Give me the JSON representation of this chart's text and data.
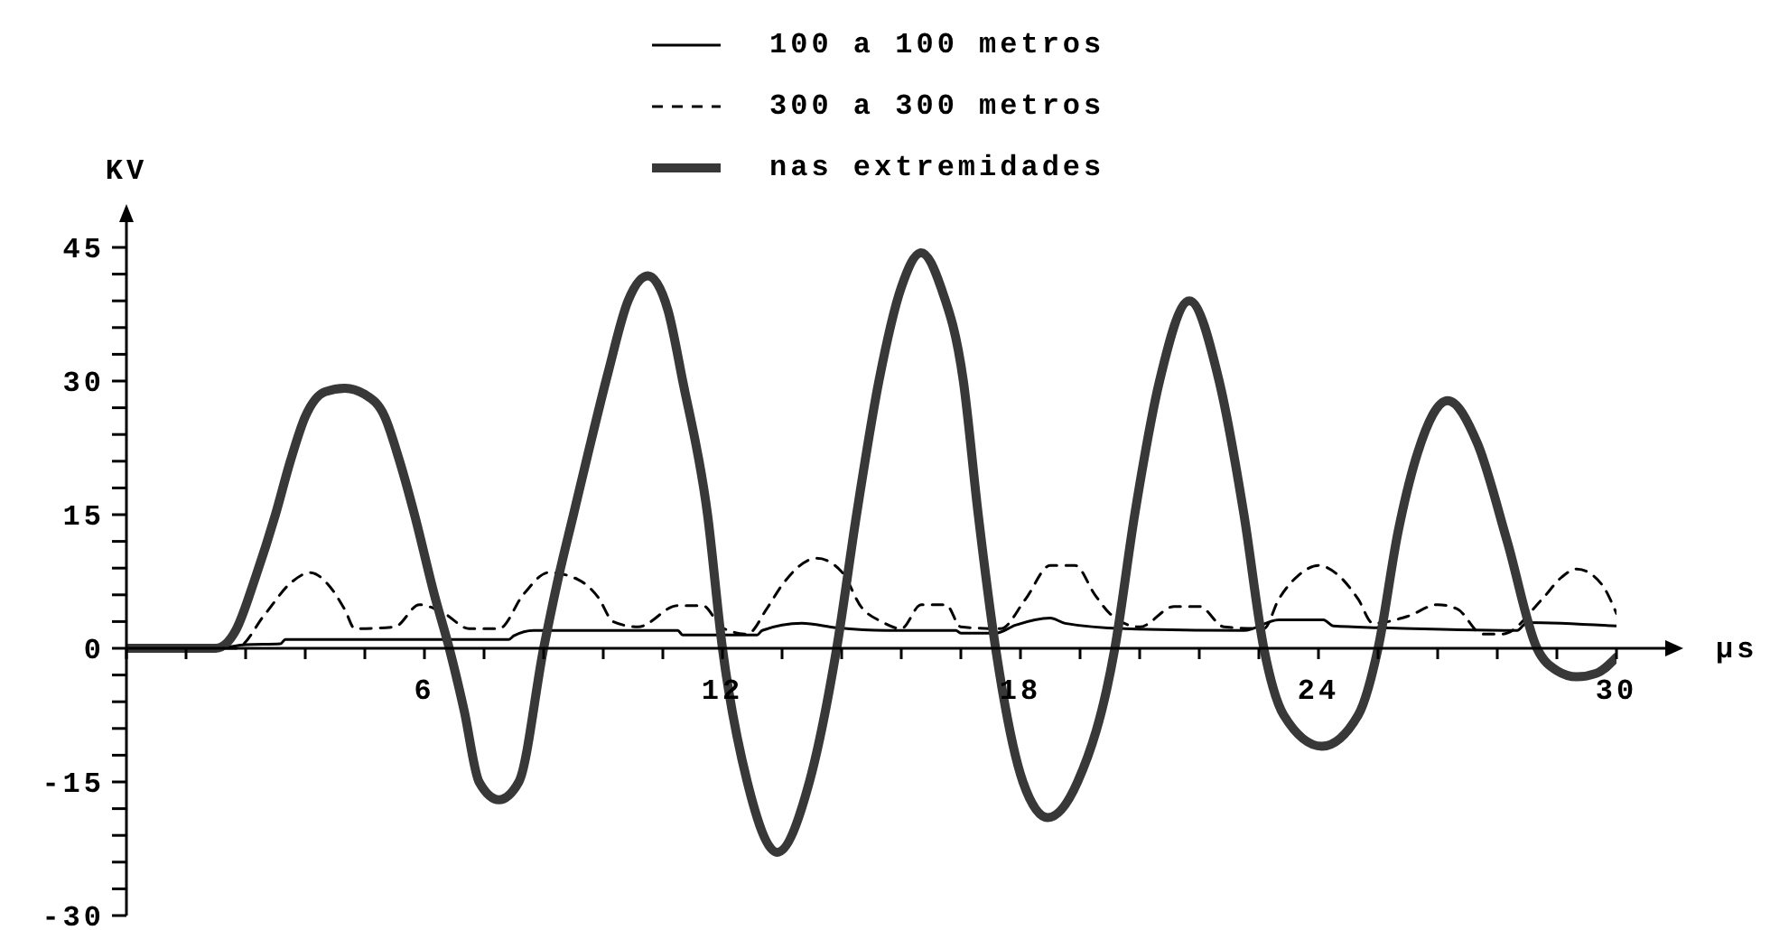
{
  "chart_data": {
    "type": "line",
    "xlabel": "µs",
    "ylabel": "KV",
    "legend": "top",
    "marker": "none",
    "xlim": [
      0,
      30
    ],
    "ylim": [
      -30,
      45
    ],
    "xticks": [
      {
        "value": 0,
        "label": null
      },
      {
        "value": 1.2,
        "label": null
      },
      {
        "value": 2.4,
        "label": null
      },
      {
        "value": 3.6,
        "label": null
      },
      {
        "value": 4.8,
        "label": null
      },
      6,
      {
        "value": 7.2,
        "label": null
      },
      {
        "value": 8.4,
        "label": null
      },
      {
        "value": 9.6,
        "label": null
      },
      {
        "value": 10.8,
        "label": null
      },
      12,
      {
        "value": 13.2,
        "label": null
      },
      {
        "value": 14.4,
        "label": null
      },
      {
        "value": 15.6,
        "label": null
      },
      {
        "value": 16.8,
        "label": null
      },
      18,
      {
        "value": 19.2,
        "label": null
      },
      {
        "value": 20.4,
        "label": null
      },
      {
        "value": 21.6,
        "label": null
      },
      {
        "value": 22.8,
        "label": null
      },
      24,
      {
        "value": 25.2,
        "label": null
      },
      {
        "value": 26.4,
        "label": null
      },
      {
        "value": 27.6,
        "label": null
      },
      {
        "value": 28.8,
        "label": null
      },
      30
    ],
    "yticks": [
      -30,
      {
        "value": -27,
        "label": null
      },
      {
        "value": -24,
        "label": null
      },
      {
        "value": -21,
        "label": null
      },
      {
        "value": -18,
        "label": null
      },
      -15,
      {
        "value": -12,
        "label": null
      },
      {
        "value": -9,
        "label": null
      },
      {
        "value": -6,
        "label": null
      },
      {
        "value": -3,
        "label": null
      },
      0,
      {
        "value": 3,
        "label": null
      },
      {
        "value": 6,
        "label": null
      },
      {
        "value": 9,
        "label": null
      },
      {
        "value": 12,
        "label": null
      },
      15,
      {
        "value": 18,
        "label": null
      },
      {
        "value": 21,
        "label": null
      },
      {
        "value": 24,
        "label": null
      },
      {
        "value": 27,
        "label": null
      },
      30,
      {
        "value": 33,
        "label": null
      },
      {
        "value": 36,
        "label": null
      },
      {
        "value": 39,
        "label": null
      },
      {
        "value": 42,
        "label": null
      },
      45
    ],
    "series": [
      {
        "name": "100 a 100 metros",
        "color": "#000000",
        "line_style": "solid",
        "x": [
          0,
          1.8,
          2.4,
          3.1,
          3.2,
          7.7,
          7.8,
          8.2,
          11.1,
          11.2,
          12.7,
          12.8,
          13.6,
          14.3,
          15.3,
          16.7,
          16.8,
          17.5,
          17.9,
          18.6,
          18.9,
          20.1,
          22.5,
          23.2,
          24.1,
          24.3,
          25.3,
          28.0,
          28.2,
          30
        ],
        "values": [
          0,
          0,
          0.4,
          0.5,
          1.0,
          1.0,
          1.4,
          2.0,
          2.0,
          1.5,
          1.5,
          2.0,
          2.8,
          2.3,
          2.0,
          2.0,
          1.7,
          1.7,
          2.6,
          3.4,
          2.8,
          2.2,
          2.0,
          3.2,
          3.2,
          2.5,
          2.3,
          2.0,
          2.9,
          2.5
        ]
      },
      {
        "name": "300 a 300 metros",
        "color": "#000000",
        "line_style": "dashed",
        "x": [
          0,
          2.2,
          2.8,
          3.3,
          3.7,
          4.1,
          4.4,
          4.6,
          5.4,
          5.9,
          6.4,
          6.9,
          7.5,
          8.0,
          8.5,
          9.1,
          9.5,
          9.8,
          10.3,
          11.1,
          11.6,
          12.0,
          12.5,
          12.9,
          13.2,
          13.9,
          14.4,
          14.8,
          15.2,
          15.6,
          16.0,
          16.5,
          16.8,
          17.6,
          18.1,
          18.6,
          19.1,
          19.5,
          19.8,
          20.4,
          21.1,
          21.6,
          22.1,
          22.9,
          23.2,
          23.6,
          24.0,
          24.4,
          24.8,
          25.1,
          25.8,
          26.4,
          26.8,
          27.3,
          27.7,
          28.5,
          28.9,
          29.2,
          29.7,
          30
        ],
        "values": [
          0,
          0,
          3.9,
          7.3,
          8.5,
          6.9,
          4.3,
          2.2,
          2.4,
          4.9,
          3.9,
          2.2,
          2.2,
          6.1,
          8.5,
          7.7,
          5.7,
          3,
          2.4,
          4.8,
          4.8,
          2.3,
          1.6,
          4.5,
          7.1,
          10.1,
          8.6,
          4.6,
          3,
          2.2,
          4.9,
          4.9,
          2.4,
          2.2,
          5.5,
          9.3,
          9.3,
          6,
          3.9,
          2.4,
          4.7,
          4.7,
          2.4,
          2.2,
          5.5,
          8.2,
          9.3,
          8.2,
          5.5,
          2.8,
          3.6,
          4.9,
          4.4,
          1.6,
          1.6,
          5.5,
          8,
          8.9,
          7.2,
          3.9
        ]
      },
      {
        "name": "nas extremidades",
        "color": "#383838",
        "line_style": "solid",
        "x": [
          0,
          1.8,
          2.2,
          2.6,
          3.0,
          3.3,
          3.6,
          4.0,
          4.4,
          4.8,
          5.2,
          5.5,
          5.8,
          6.2,
          6.5,
          6.8,
          7.1,
          7.5,
          7.9,
          8.4,
          8.7,
          9.0,
          9.3,
          9.7,
          10.1,
          10.5,
          10.9,
          11.2,
          11.7,
          12.0,
          12.5,
          13.1,
          13.75,
          14.3,
          14.7,
          15.15,
          15.6,
          16.0,
          16.4,
          16.85,
          17.15,
          17.5,
          18.05,
          18.55,
          19.15,
          19.9,
          20.3,
          20.8,
          21.4,
          22.0,
          22.5,
          22.9,
          23.3,
          24.07,
          24.8,
          25.2,
          25.6,
          26.0,
          26.6,
          27.2,
          27.8,
          28.4,
          28.8,
          29.2,
          29.6,
          30
        ],
        "values": [
          0,
          0,
          2,
          8,
          15,
          21,
          26,
          28.8,
          29.2,
          28.5,
          26,
          21,
          15,
          6,
          0,
          -7,
          -15,
          -17,
          -15,
          0,
          8,
          15,
          22,
          31,
          39,
          41.8,
          38,
          30,
          15,
          0,
          -15,
          -22.9,
          -15,
          0,
          15,
          30,
          40.5,
          44.4,
          40.5,
          30,
          15,
          0,
          -15,
          -19,
          -15,
          0,
          15,
          30,
          39,
          30,
          15,
          0,
          -7.5,
          -11,
          -7.5,
          0,
          13,
          22,
          27.8,
          23,
          12,
          0,
          -2.5,
          -3.2,
          -2.8,
          -1
        ]
      }
    ]
  }
}
